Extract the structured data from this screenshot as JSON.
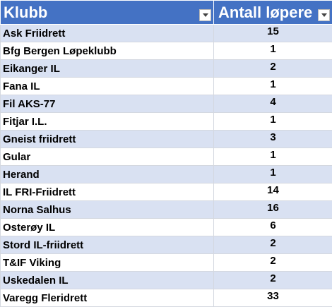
{
  "table": {
    "headers": {
      "club": "Klubb",
      "count": "Antall løpere"
    },
    "header_icons": [
      "filter-dropdown-icon",
      "filter-dropdown-icon"
    ],
    "colors": {
      "header": "#4472c4",
      "band": "#d9e1f2",
      "plain": "#ffffff"
    },
    "rows": [
      {
        "club": "Ask Friidrett",
        "count": "15"
      },
      {
        "club": "Bfg Bergen Løpeklubb",
        "count": "1"
      },
      {
        "club": "Eikanger IL",
        "count": "2"
      },
      {
        "club": "Fana IL",
        "count": "1"
      },
      {
        "club": "Fil AKS-77",
        "count": "4"
      },
      {
        "club": "Fitjar I.L.",
        "count": "1"
      },
      {
        "club": "Gneist friidrett",
        "count": "3"
      },
      {
        "club": "Gular",
        "count": "1"
      },
      {
        "club": "Herand",
        "count": "1"
      },
      {
        "club": "IL FRI-Friidrett",
        "count": "14"
      },
      {
        "club": "Norna Salhus",
        "count": "16"
      },
      {
        "club": "Osterøy IL",
        "count": "6"
      },
      {
        "club": "Stord IL-friidrett",
        "count": "2"
      },
      {
        "club": "T&IF Viking",
        "count": "2"
      },
      {
        "club": "Uskedalen IL",
        "count": "2"
      },
      {
        "club": "Varegg Fleridrett",
        "count": "33"
      }
    ]
  }
}
